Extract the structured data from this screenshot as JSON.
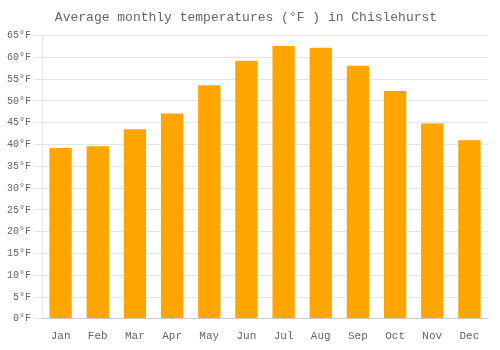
{
  "chart_data": {
    "type": "bar",
    "title": "Average monthly temperatures (°F ) in Chislehurst",
    "categories": [
      "Jan",
      "Feb",
      "Mar",
      "Apr",
      "May",
      "Jun",
      "Jul",
      "Aug",
      "Sep",
      "Oct",
      "Nov",
      "Dec"
    ],
    "values": [
      39.2,
      39.6,
      43.5,
      47.1,
      53.6,
      59.2,
      62.6,
      62.2,
      58.1,
      52.3,
      44.8,
      41.0
    ],
    "color": "#FFA500",
    "ylim": [
      0,
      65
    ],
    "yticks": [
      {
        "value": 0,
        "label": "0°F"
      },
      {
        "value": 5,
        "label": "5°F"
      },
      {
        "value": 10,
        "label": "10°F"
      },
      {
        "value": 15,
        "label": "15°F"
      },
      {
        "value": 20,
        "label": "20°F"
      },
      {
        "value": 25,
        "label": "25°F"
      },
      {
        "value": 30,
        "label": "30°F"
      },
      {
        "value": 35,
        "label": "35°F"
      },
      {
        "value": 40,
        "label": "40°F"
      },
      {
        "value": 45,
        "label": "45°F"
      },
      {
        "value": 50,
        "label": "50°F"
      },
      {
        "value": 55,
        "label": "55°F"
      },
      {
        "value": 60,
        "label": "60°F"
      },
      {
        "value": 65,
        "label": "65°F"
      }
    ],
    "grid": true
  }
}
